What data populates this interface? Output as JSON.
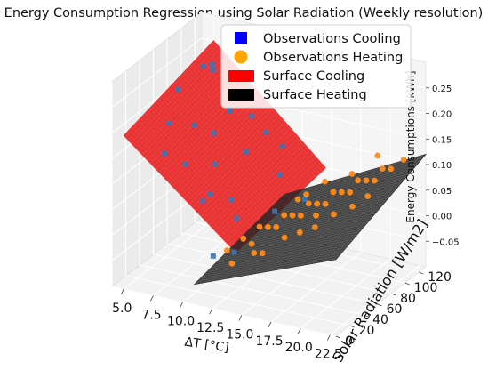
{
  "chart_data": {
    "type": "scatter",
    "title": "Energy Consumption Regression using Solar Radiation (Weekly resolution)",
    "xlabel": "ΔT [°C]",
    "ylabel": "Solar Radiation [W/m2]",
    "zlabel": "Energy Consumptions [kWh]",
    "x_ticks": [
      "5.0",
      "7.5",
      "10.0",
      "12.5",
      "15.0",
      "17.5",
      "20.0",
      "22.5"
    ],
    "y_ticks": [
      "0",
      "20",
      "40",
      "60",
      "80",
      "100",
      "120"
    ],
    "z_ticks": [
      "−0.05",
      "0.00",
      "0.05",
      "0.10",
      "0.15",
      "0.20",
      "0.25"
    ],
    "xlim": [
      4,
      23
    ],
    "ylim": [
      0,
      130
    ],
    "zlim": [
      -0.1,
      0.3
    ],
    "legend": {
      "placement": "top-right",
      "items": [
        {
          "label": "Observations Cooling",
          "color": "#0000ff",
          "shape": "square"
        },
        {
          "label": "Observations Heating",
          "color": "#ffa500",
          "shape": "circle"
        },
        {
          "label": "Surface Cooling",
          "color": "#ff0000",
          "shape": "patch"
        },
        {
          "label": "Surface Heating",
          "color": "#000000",
          "shape": "patch"
        }
      ]
    },
    "surfaces": [
      {
        "name": "Surface Cooling",
        "color": "#ee2a2a",
        "x_range": [
          5,
          14.5
        ],
        "y_range": [
          0,
          130
        ],
        "z_at_corners": {
          "x0y0": 0.2,
          "x1y0": 0.02,
          "x0y1": 0.25,
          "x1y1": 0.05
        }
      },
      {
        "name": "Surface Heating",
        "color": "#303030",
        "x_range": [
          11,
          23
        ],
        "y_range": [
          0,
          130
        ],
        "z_at_corners": {
          "x0y0": -0.06,
          "x1y0": 0.05,
          "x0y1": -0.02,
          "x1y1": 0.12
        }
      }
    ],
    "series": [
      {
        "name": "Observations Cooling",
        "color": "#3d74b6",
        "marker": "square",
        "points": [
          [
            5.5,
            70,
            0.22
          ],
          [
            6.0,
            110,
            0.23
          ],
          [
            6.5,
            40,
            0.19
          ],
          [
            7.0,
            95,
            0.24
          ],
          [
            7.5,
            60,
            0.17
          ],
          [
            8.0,
            120,
            0.21
          ],
          [
            8.5,
            30,
            0.13
          ],
          [
            9.0,
            85,
            0.18
          ],
          [
            9.5,
            55,
            0.11
          ],
          [
            10.0,
            100,
            0.16
          ],
          [
            10.5,
            20,
            0.08
          ],
          [
            11.0,
            75,
            0.12
          ],
          [
            11.5,
            45,
            0.06
          ],
          [
            12.0,
            110,
            0.1
          ],
          [
            12.5,
            35,
            0.04
          ],
          [
            13.0,
            90,
            0.07
          ],
          [
            13.5,
            15,
            0.0
          ],
          [
            14.0,
            65,
            0.03
          ],
          [
            6.5,
            90,
            0.25
          ],
          [
            8.5,
            70,
            0.15
          ],
          [
            10.0,
            40,
            0.07
          ],
          [
            12.0,
            10,
            -0.01
          ],
          [
            14.5,
            100,
            0.02
          ],
          [
            9.0,
            115,
            0.2
          ],
          [
            7.0,
            25,
            0.15
          ],
          [
            11.5,
            95,
            0.14
          ]
        ]
      },
      {
        "name": "Observations Heating",
        "color": "#ff8c1a",
        "marker": "circle",
        "points": [
          [
            12.0,
            30,
            -0.02
          ],
          [
            12.5,
            45,
            -0.01
          ],
          [
            13.0,
            60,
            0.0
          ],
          [
            13.5,
            40,
            -0.01
          ],
          [
            14.0,
            55,
            0.01
          ],
          [
            14.5,
            70,
            0.02
          ],
          [
            15.0,
            50,
            0.02
          ],
          [
            15.5,
            65,
            0.03
          ],
          [
            16.0,
            80,
            0.04
          ],
          [
            16.5,
            60,
            0.04
          ],
          [
            17.0,
            75,
            0.05
          ],
          [
            17.5,
            90,
            0.06
          ],
          [
            18.0,
            70,
            0.06
          ],
          [
            18.5,
            85,
            0.07
          ],
          [
            19.0,
            100,
            0.08
          ],
          [
            19.5,
            80,
            0.08
          ],
          [
            20.0,
            95,
            0.09
          ],
          [
            20.5,
            110,
            0.1
          ],
          [
            21.0,
            90,
            0.1
          ],
          [
            21.5,
            105,
            0.11
          ],
          [
            22.0,
            115,
            0.12
          ],
          [
            13.0,
            20,
            -0.03
          ],
          [
            14.0,
            35,
            -0.02
          ],
          [
            15.0,
            30,
            -0.01
          ],
          [
            16.0,
            45,
            0.01
          ],
          [
            17.0,
            50,
            0.02
          ],
          [
            18.0,
            55,
            0.03
          ],
          [
            19.0,
            65,
            0.05
          ],
          [
            20.0,
            75,
            0.06
          ],
          [
            21.0,
            80,
            0.08
          ],
          [
            15.5,
            85,
            0.05
          ],
          [
            17.5,
            65,
            0.04
          ],
          [
            18.5,
            100,
            0.09
          ],
          [
            16.5,
            95,
            0.07
          ],
          [
            19.5,
            120,
            0.11
          ],
          [
            14.5,
            90,
            0.03
          ]
        ]
      }
    ]
  }
}
